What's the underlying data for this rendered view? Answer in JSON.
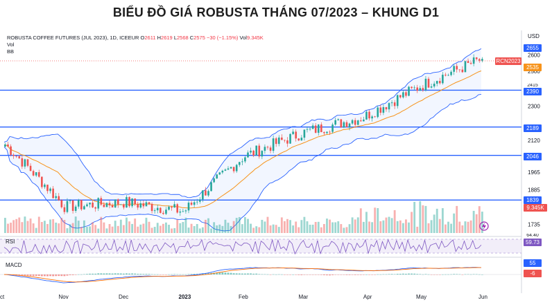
{
  "title": "BIỂU ĐỒ GIÁ ROBUSTA THÁNG 07/2023 – KHUNG D1",
  "legend": {
    "instrument": "ROBUSTA COFFEE FUTURES (JUL 2023), 1D, ICEEUR",
    "o_label": "O",
    "o": "2611",
    "h_label": "H",
    "h": "2619",
    "l_label": "L",
    "l": "2568",
    "c_label": "C",
    "c": "2575",
    "change": "−30 (−1.15%)",
    "vol_label": "Vol",
    "vol": "9.345K",
    "ind1": "Vol",
    "ind2": "BB"
  },
  "axis": {
    "currency": "USD",
    "y_ticks": [
      "2600",
      "2500",
      "2300",
      "2120",
      "1965",
      "1885",
      "1735"
    ],
    "x_ticks": [
      "ct",
      "Nov",
      "Dec",
      "2023",
      "Feb",
      "Mar",
      "Apr",
      "May",
      "Jun"
    ]
  },
  "badges": {
    "p2655": "2655",
    "p2535": "2535",
    "rcn": "RCN2023",
    "p2415": "2415",
    "p2390": "2390",
    "p2189": "2189",
    "p2046": "2046",
    "p1839": "1839",
    "vol": "9.345K",
    "rsi_upper": "64.40",
    "rsi_value": "59.73",
    "macd_value": "55",
    "macd_hist": "-6"
  },
  "panels": {
    "rsi": "RSI",
    "macd": "MACD"
  },
  "colors": {
    "up": "#26a69a",
    "down": "#ef5350",
    "level_line": "#2962ff",
    "bb": "#2962ff",
    "ma": "#f7931a",
    "rsi_line": "#7e57c2"
  },
  "chart_data": {
    "type": "candlestick",
    "symbol": "RCN2023",
    "timeframe": "1D",
    "date_range": "Oct 2022 – Jun 2023",
    "y_scale": "log",
    "ylim": [
      1700,
      2720
    ],
    "support_resistance_levels": [
      2390,
      2189,
      2046,
      1839
    ],
    "last_bar": {
      "open": 2611,
      "high": 2619,
      "low": 2568,
      "close": 2575,
      "change": -30,
      "change_pct": -1.15,
      "volume": "9.345K"
    },
    "bollinger_mid": 2535,
    "bollinger_upper": 2655,
    "bollinger_lower": 2415,
    "close_series_approx": {
      "months": [
        "Oct",
        "Nov",
        "Dec",
        "Jan",
        "Feb",
        "Mar",
        "Apr",
        "May",
        "Jun"
      ],
      "values": [
        2100,
        1810,
        1830,
        1790,
        2040,
        2160,
        2240,
        2420,
        2575
      ]
    },
    "rsi": {
      "value": 59.73,
      "upper": 64.4
    },
    "macd": {
      "value": 55,
      "histogram": -6
    }
  }
}
